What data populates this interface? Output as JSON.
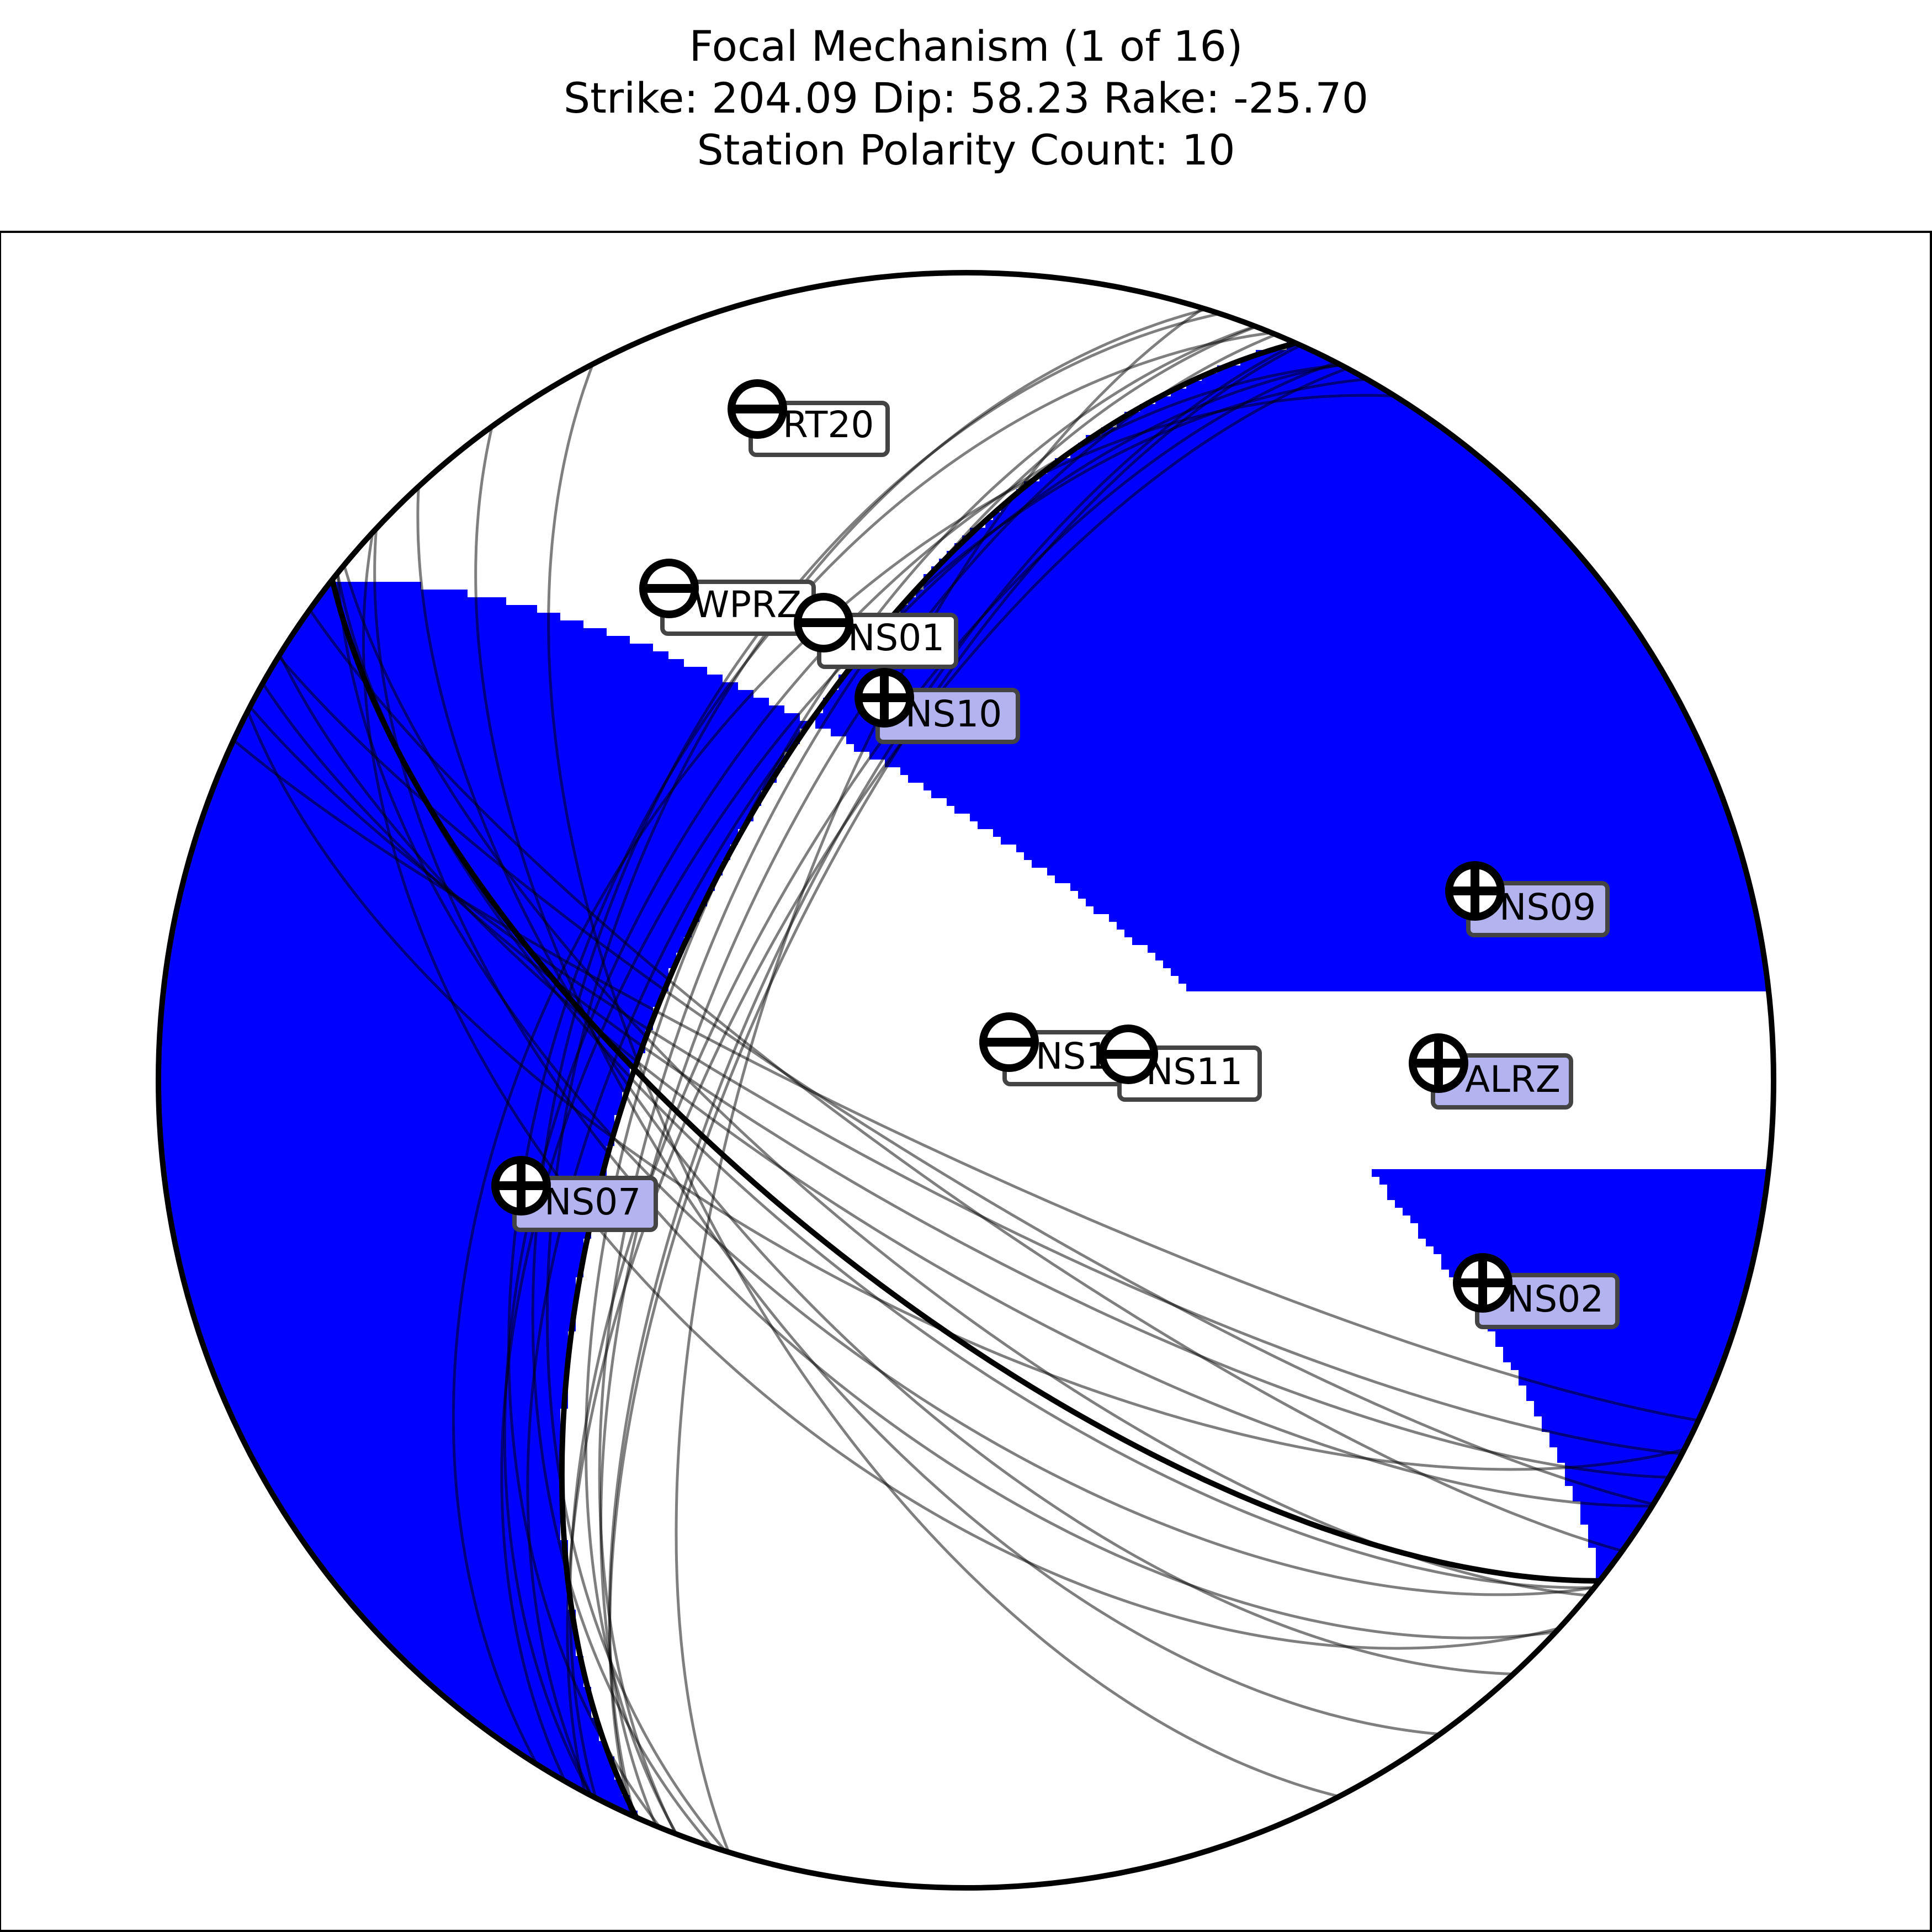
{
  "figure": {
    "title_lines": [
      "Focal Mechanism (1 of 16)",
      "Strike: 204.09  Dip:  58.23  Rake: -25.70",
      "Station Polarity Count: 10"
    ]
  },
  "chart_data": {
    "type": "focal-mechanism",
    "title": "Focal Mechanism (1 of 16)\nStrike: 204.09  Dip:  58.23  Rake: -25.70\nStation Polarity Count: 10",
    "mechanism": {
      "index": 1,
      "total": 16,
      "strike": 204.09,
      "dip": 58.23,
      "rake": -25.7
    },
    "station_polarity_count": 10,
    "compression_color": "#0000ff",
    "dilatation_color": "#ffffff",
    "polarity_up_label_color": "#b3b3f0",
    "polarity_down_label_color": "#ffffff",
    "alternative_nodal_plane_count": 15,
    "stations": [
      {
        "name": "RT20",
        "polarity": "down"
      },
      {
        "name": "WPRZ",
        "polarity": "down"
      },
      {
        "name": "NS01",
        "polarity": "down"
      },
      {
        "name": "NS10",
        "polarity": "up"
      },
      {
        "name": "NS09",
        "polarity": "up"
      },
      {
        "name": "NS1",
        "polarity": "down"
      },
      {
        "name": "NS11",
        "polarity": "down"
      },
      {
        "name": "ALRZ",
        "polarity": "up"
      },
      {
        "name": "NS07",
        "polarity": "up"
      },
      {
        "name": "NS02",
        "polarity": "up"
      }
    ]
  }
}
